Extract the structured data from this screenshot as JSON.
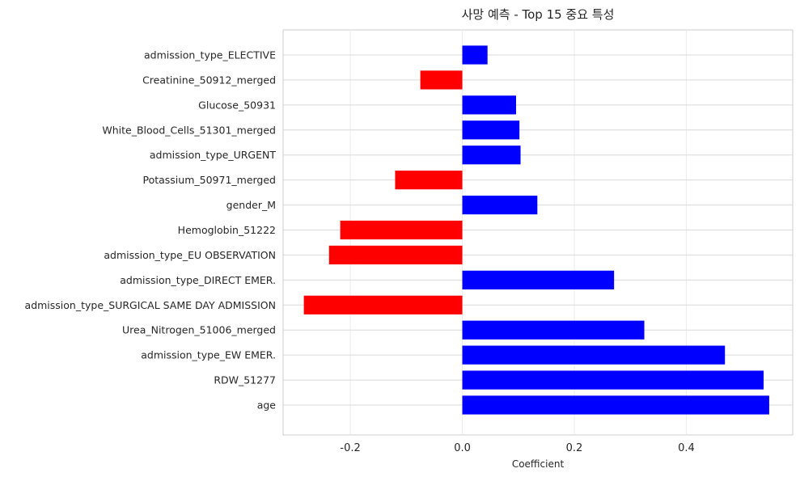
{
  "chart_data": {
    "type": "bar",
    "orientation": "horizontal",
    "title": "사망 예측 - Top 15 중요 특성",
    "xlabel": "Coefficient",
    "ylabel": "",
    "xlim": [
      -0.32,
      0.59
    ],
    "xticks": [
      -0.2,
      0.0,
      0.2,
      0.4
    ],
    "xtick_labels": [
      "-0.2",
      "0.0",
      "0.2",
      "0.4"
    ],
    "grid": true,
    "colors": {
      "positive": "#0000ff",
      "negative": "#ff0000"
    },
    "categories": [
      "admission_type_ELECTIVE",
      "Creatinine_50912_merged",
      "Glucose_50931",
      "White_Blood_Cells_51301_merged",
      "admission_type_URGENT",
      "Potassium_50971_merged",
      "gender_M",
      "Hemoglobin_51222",
      "admission_type_EU OBSERVATION",
      "admission_type_DIRECT EMER.",
      "admission_type_SURGICAL SAME DAY ADMISSION",
      "Urea_Nitrogen_51006_merged",
      "admission_type_EW EMER.",
      "RDW_51277",
      "age"
    ],
    "values": [
      0.045,
      -0.075,
      0.096,
      0.102,
      0.104,
      -0.12,
      0.134,
      -0.218,
      -0.238,
      0.271,
      -0.283,
      0.325,
      0.469,
      0.538,
      0.548
    ]
  }
}
